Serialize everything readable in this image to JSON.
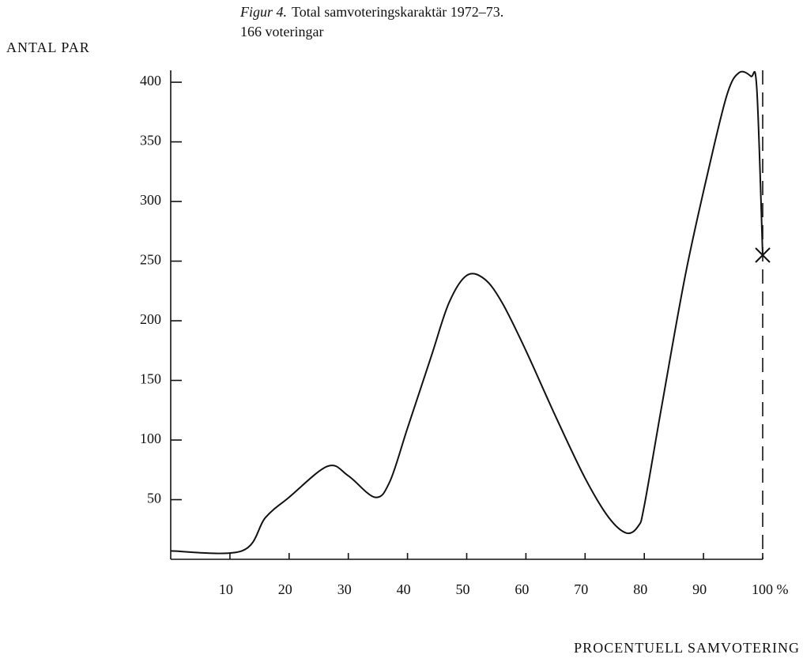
{
  "chart_data": {
    "type": "line",
    "figure_label": "Figur 4.",
    "title": "Total samvoteringskaraktär 1972–73.",
    "subtitle": "166 voteringar",
    "y_label": "ANTAL PAR",
    "x_label": "PROCENTUELL SAMVOTERING",
    "x": [
      0,
      12,
      16,
      20,
      26.5,
      30,
      34.5,
      37,
      40,
      44,
      47,
      50,
      53,
      56,
      60,
      65,
      70,
      74,
      77,
      79,
      80,
      83,
      87,
      91,
      94,
      96,
      98,
      99,
      100
    ],
    "values": [
      7,
      7,
      35,
      52,
      78,
      70,
      52,
      65,
      110,
      170,
      215,
      238,
      235,
      215,
      175,
      120,
      68,
      35,
      22,
      28,
      45,
      130,
      240,
      330,
      390,
      408,
      405,
      395,
      255
    ],
    "color": "#111111",
    "xlim": [
      0,
      100
    ],
    "ylim": [
      0,
      410
    ],
    "xticks": [
      10,
      20,
      30,
      40,
      50,
      60,
      70,
      80,
      90,
      {
        "value": 100,
        "label": "100 %"
      }
    ],
    "yticks": [
      50,
      100,
      150,
      200,
      250,
      300,
      350,
      400
    ],
    "reference_line": {
      "x": 100,
      "style": "dashed"
    },
    "marker": {
      "x": 100,
      "y": 255
    }
  }
}
